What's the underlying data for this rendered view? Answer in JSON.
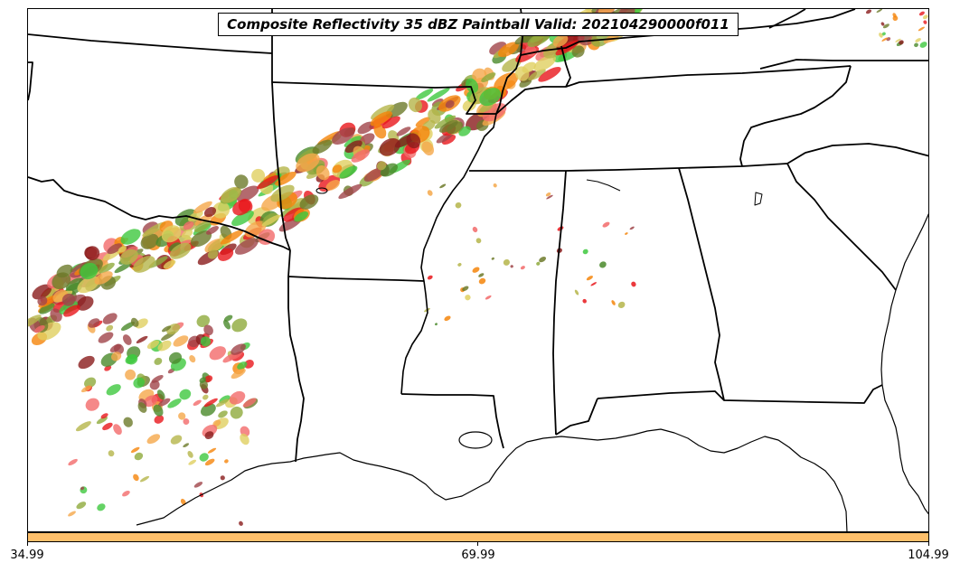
{
  "title": "Composite Reflectivity 35 dBZ Paintball Valid: 202104290000f011",
  "map": {
    "region": "Southeastern United States",
    "background_color": "#ffffff",
    "boundary_color": "#000000",
    "reflectivity_threshold_dbz": 35,
    "member_colors": [
      "#e8161b",
      "#f26a6a",
      "#f5850a",
      "#f5a84a",
      "#8a1b1b",
      "#a0454a",
      "#3ec83e",
      "#8faa3c",
      "#6d7a2a",
      "#b5b54a",
      "#4a8a2a",
      "#e0d060"
    ]
  },
  "colorbar": {
    "color": "#ffc06b",
    "ticks": [
      "34.99",
      "69.99",
      "104.99"
    ]
  }
}
